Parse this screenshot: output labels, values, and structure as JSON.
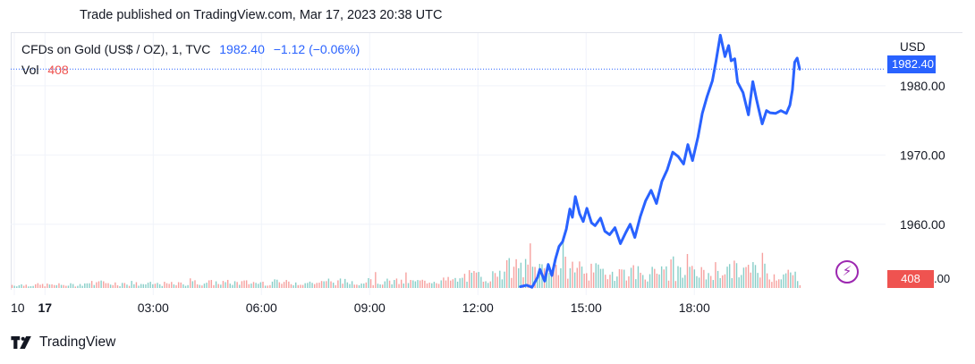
{
  "header": {
    "published": "Trade published on TradingView.com, Mar 17, 2023 20:38 UTC"
  },
  "legend": {
    "symbol": "CFDs on Gold (US$ / OZ), 1, TVC",
    "price": "1982.40",
    "change": "−1.12 (−0.06%)",
    "volume_label": "Vol",
    "volume_value": "408"
  },
  "price_axis": {
    "currency": "USD",
    "last_price_badge": "1982.40",
    "volume_badge": "408",
    "volume_badge_tail": ".00"
  },
  "footer": {
    "brand": "TradingView"
  },
  "colors": {
    "line": "#2962ff",
    "volume_up": "#26a69a",
    "volume_down": "#ef5350",
    "grid": "#f0f3fa",
    "badge_price": "#2962ff",
    "badge_volume": "#ef5350",
    "lightning": "#9c27b0"
  },
  "chart_data": {
    "type": "line",
    "title": "CFDs on Gold (US$ / OZ), 1, TVC",
    "interval": "1",
    "ylabel": "USD",
    "y_ticks": [
      1960,
      1970,
      1980
    ],
    "y_tick_labels": [
      "1960.00",
      "1970.00",
      "1980.00"
    ],
    "ylim": [
      1950.8,
      1987.6
    ],
    "x_ticks": [
      "10",
      "17",
      "03:00",
      "06:00",
      "09:00",
      "12:00",
      "15:00",
      "18:00"
    ],
    "x_tick_times": [
      -0.85,
      0,
      3,
      6,
      9,
      12,
      15,
      18
    ],
    "xlim": [
      -0.95,
      23.3
    ],
    "grid": true,
    "series": [
      {
        "name": "CFDs on Gold (US$ / OZ), 1, TVC",
        "x": [
          13.18,
          13.35,
          13.5,
          13.65,
          13.72,
          13.85,
          13.95,
          14.05,
          14.15,
          14.25,
          14.35,
          14.45,
          14.55,
          14.62,
          14.7,
          14.82,
          14.92,
          15.02,
          15.15,
          15.25,
          15.4,
          15.52,
          15.65,
          15.8,
          15.95,
          16.1,
          16.22,
          16.35,
          16.5,
          16.65,
          16.8,
          16.95,
          17.1,
          17.25,
          17.4,
          17.55,
          17.7,
          17.82,
          17.95,
          18.1,
          18.22,
          18.35,
          18.5,
          18.6,
          18.72,
          18.85,
          18.95,
          19.02,
          19.12,
          19.2,
          19.35,
          19.5,
          19.62,
          19.72,
          19.8,
          19.88,
          20.0,
          20.1,
          20.25,
          20.4,
          20.55,
          20.65,
          20.72,
          20.78,
          20.85,
          20.92
        ],
        "values": [
          1951.0,
          1951.2,
          1950.9,
          1952.3,
          1953.5,
          1951.8,
          1954.2,
          1952.6,
          1955.0,
          1956.8,
          1957.5,
          1959.3,
          1962.2,
          1961.0,
          1964.0,
          1961.5,
          1960.4,
          1962.3,
          1960.2,
          1959.8,
          1960.9,
          1959.0,
          1958.5,
          1959.5,
          1957.2,
          1958.8,
          1960.0,
          1958.1,
          1961.1,
          1963.4,
          1964.9,
          1963.0,
          1966.2,
          1967.9,
          1970.4,
          1969.8,
          1968.7,
          1971.5,
          1969.2,
          1972.6,
          1976.0,
          1978.4,
          1980.7,
          1983.5,
          1987.3,
          1984.2,
          1985.8,
          1983.6,
          1983.9,
          1980.5,
          1979.0,
          1975.8,
          1980.6,
          1978.1,
          1976.3,
          1974.5,
          1976.4,
          1976.1,
          1976.0,
          1976.4,
          1976.0,
          1977.2,
          1979.4,
          1983.4,
          1984.0,
          1982.4
        ]
      }
    ],
    "volume": {
      "name": "Vol",
      "last": 408,
      "profile": [
        {
          "from": -0.95,
          "to": 1.0,
          "level": 0.07
        },
        {
          "from": 1.0,
          "to": 2.0,
          "level": 0.11
        },
        {
          "from": 2.0,
          "to": 4.0,
          "level": 0.09
        },
        {
          "from": 4.0,
          "to": 8.0,
          "level": 0.12
        },
        {
          "from": 8.0,
          "to": 10.5,
          "level": 0.14
        },
        {
          "from": 10.5,
          "to": 11.5,
          "level": 0.17
        },
        {
          "from": 11.5,
          "to": 12.5,
          "level": 0.26
        },
        {
          "from": 12.5,
          "to": 14.0,
          "level": 0.44
        },
        {
          "from": 14.0,
          "to": 15.0,
          "level": 0.46
        },
        {
          "from": 15.0,
          "to": 16.5,
          "level": 0.36
        },
        {
          "from": 16.5,
          "to": 18.5,
          "level": 0.32
        },
        {
          "from": 18.5,
          "to": 20.0,
          "level": 0.4
        },
        {
          "from": 20.0,
          "to": 20.8,
          "level": 0.3
        },
        {
          "from": 20.8,
          "to": 20.93,
          "level": 0.12
        }
      ]
    }
  }
}
